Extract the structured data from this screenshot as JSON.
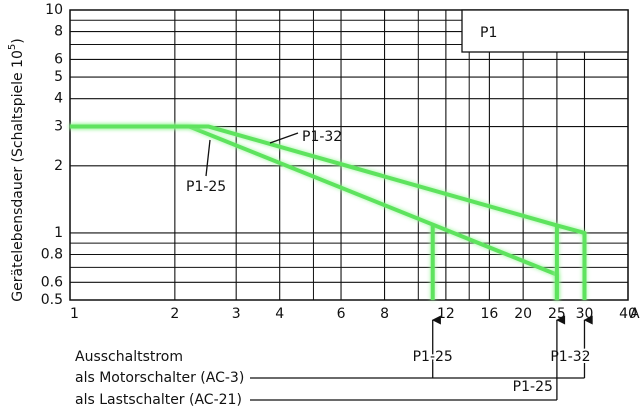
{
  "chart_data": {
    "type": "line",
    "log_x": true,
    "log_y": true,
    "grid": true,
    "ylabel_parts": [
      "Gerätelebensdauer (Schaltspiele 10",
      "5",
      ")"
    ],
    "xlabel": "A",
    "box_label": "P1",
    "xlim": [
      1,
      40
    ],
    "ylim": [
      0.5,
      10
    ],
    "xticks": [
      1,
      2,
      3,
      4,
      6,
      8,
      12,
      16,
      20,
      25,
      30,
      40
    ],
    "xminor": [
      5,
      10,
      14
    ],
    "yticks": [
      0.5,
      0.6,
      0.8,
      1,
      2,
      3,
      4,
      5,
      6,
      8,
      10
    ],
    "yminor": [
      0.7,
      0.9,
      7,
      9
    ],
    "series": [
      {
        "name": "P1-25",
        "color": "#5ee35e",
        "x": [
          1,
          2.2,
          11,
          25,
          25,
          null,
          11,
          11
        ],
        "values": [
          3,
          3,
          1.09,
          0.65,
          0.5,
          null,
          1.09,
          0.5
        ]
      },
      {
        "name": "P1-32",
        "color": "#5ee35e",
        "x": [
          1,
          2.5,
          25,
          30,
          30,
          null,
          25,
          25
        ],
        "values": [
          3,
          3,
          1.08,
          1,
          0.5,
          null,
          1.08,
          0.5
        ]
      }
    ],
    "breaking_current": {
      "heading": "Ausschaltstrom",
      "rows": [
        {
          "label": "als Motorschalter (AC-3)",
          "markers": [
            {
              "label": "P1-25",
              "x": 11
            },
            {
              "label": "P1-32",
              "x": 30
            }
          ]
        },
        {
          "label": "als Lastschalter (AC-21)",
          "markers": [
            {
              "label": "P1-25",
              "x": 25
            }
          ]
        }
      ]
    }
  }
}
